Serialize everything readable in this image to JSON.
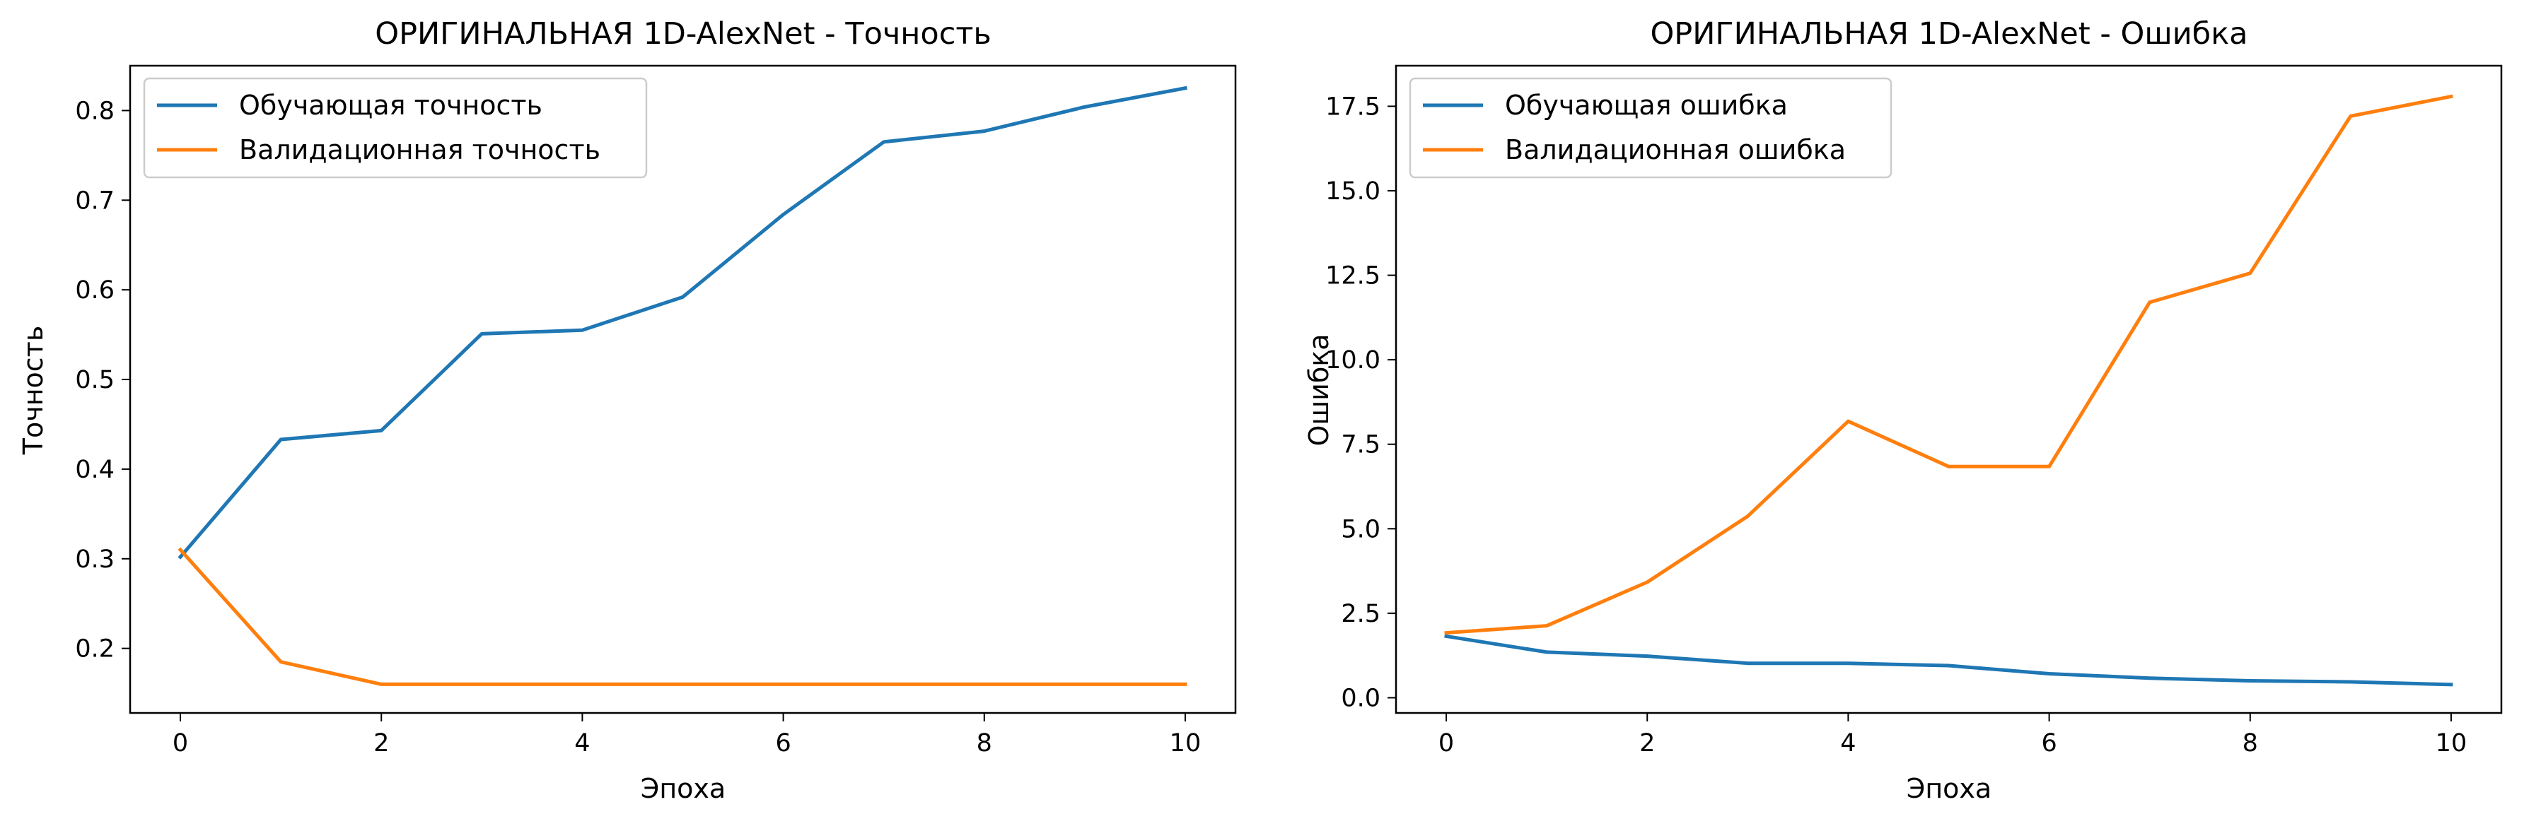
{
  "chart_data": [
    {
      "type": "line",
      "title": "ОРИГИНАЛЬНАЯ 1D-AlexNet - Точность",
      "xlabel": "Эпоха",
      "ylabel": "Точность",
      "xlim": [
        -0.5,
        10.5
      ],
      "ylim": [
        0.128,
        0.85
      ],
      "xticks": [
        "0",
        "2",
        "4",
        "6",
        "8",
        "10"
      ],
      "yticks": [
        "0.2",
        "0.3",
        "0.4",
        "0.5",
        "0.6",
        "0.7",
        "0.8"
      ],
      "grid": false,
      "legend_position": "upper-left",
      "x": [
        0,
        1,
        2,
        3,
        4,
        5,
        6,
        7,
        8,
        9,
        10
      ],
      "series": [
        {
          "name": "Обучающая точность",
          "color": "#1f77b4",
          "values": [
            0.302,
            0.433,
            0.443,
            0.551,
            0.555,
            0.592,
            0.684,
            0.765,
            0.777,
            0.804,
            0.825
          ]
        },
        {
          "name": "Валидационная точность",
          "color": "#ff7f0e",
          "values": [
            0.31,
            0.185,
            0.16,
            0.16,
            0.16,
            0.16,
            0.16,
            0.16,
            0.16,
            0.16,
            0.16
          ]
        }
      ]
    },
    {
      "type": "line",
      "title": "ОРИГИНАЛЬНАЯ 1D-AlexNet - Ошибка",
      "xlabel": "Эпоха",
      "ylabel": "Ошибка",
      "xlim": [
        -0.5,
        10.5
      ],
      "ylim": [
        -0.45,
        18.7
      ],
      "xticks": [
        "0",
        "2",
        "4",
        "6",
        "8",
        "10"
      ],
      "yticks": [
        "0.0",
        "2.5",
        "5.0",
        "7.5",
        "10.0",
        "12.5",
        "15.0",
        "17.5"
      ],
      "grid": false,
      "legend_position": "upper-left",
      "x": [
        0,
        1,
        2,
        3,
        4,
        5,
        6,
        7,
        8,
        9,
        10
      ],
      "series": [
        {
          "name": "Обучающая ошибка",
          "color": "#1f77b4",
          "values": [
            1.82,
            1.35,
            1.23,
            1.02,
            1.02,
            0.95,
            0.71,
            0.58,
            0.5,
            0.47,
            0.39
          ]
        },
        {
          "name": "Валидационная ошибка",
          "color": "#ff7f0e",
          "values": [
            1.92,
            2.13,
            3.42,
            5.37,
            8.18,
            6.84,
            6.84,
            11.7,
            12.56,
            17.21,
            17.79
          ]
        }
      ]
    }
  ]
}
